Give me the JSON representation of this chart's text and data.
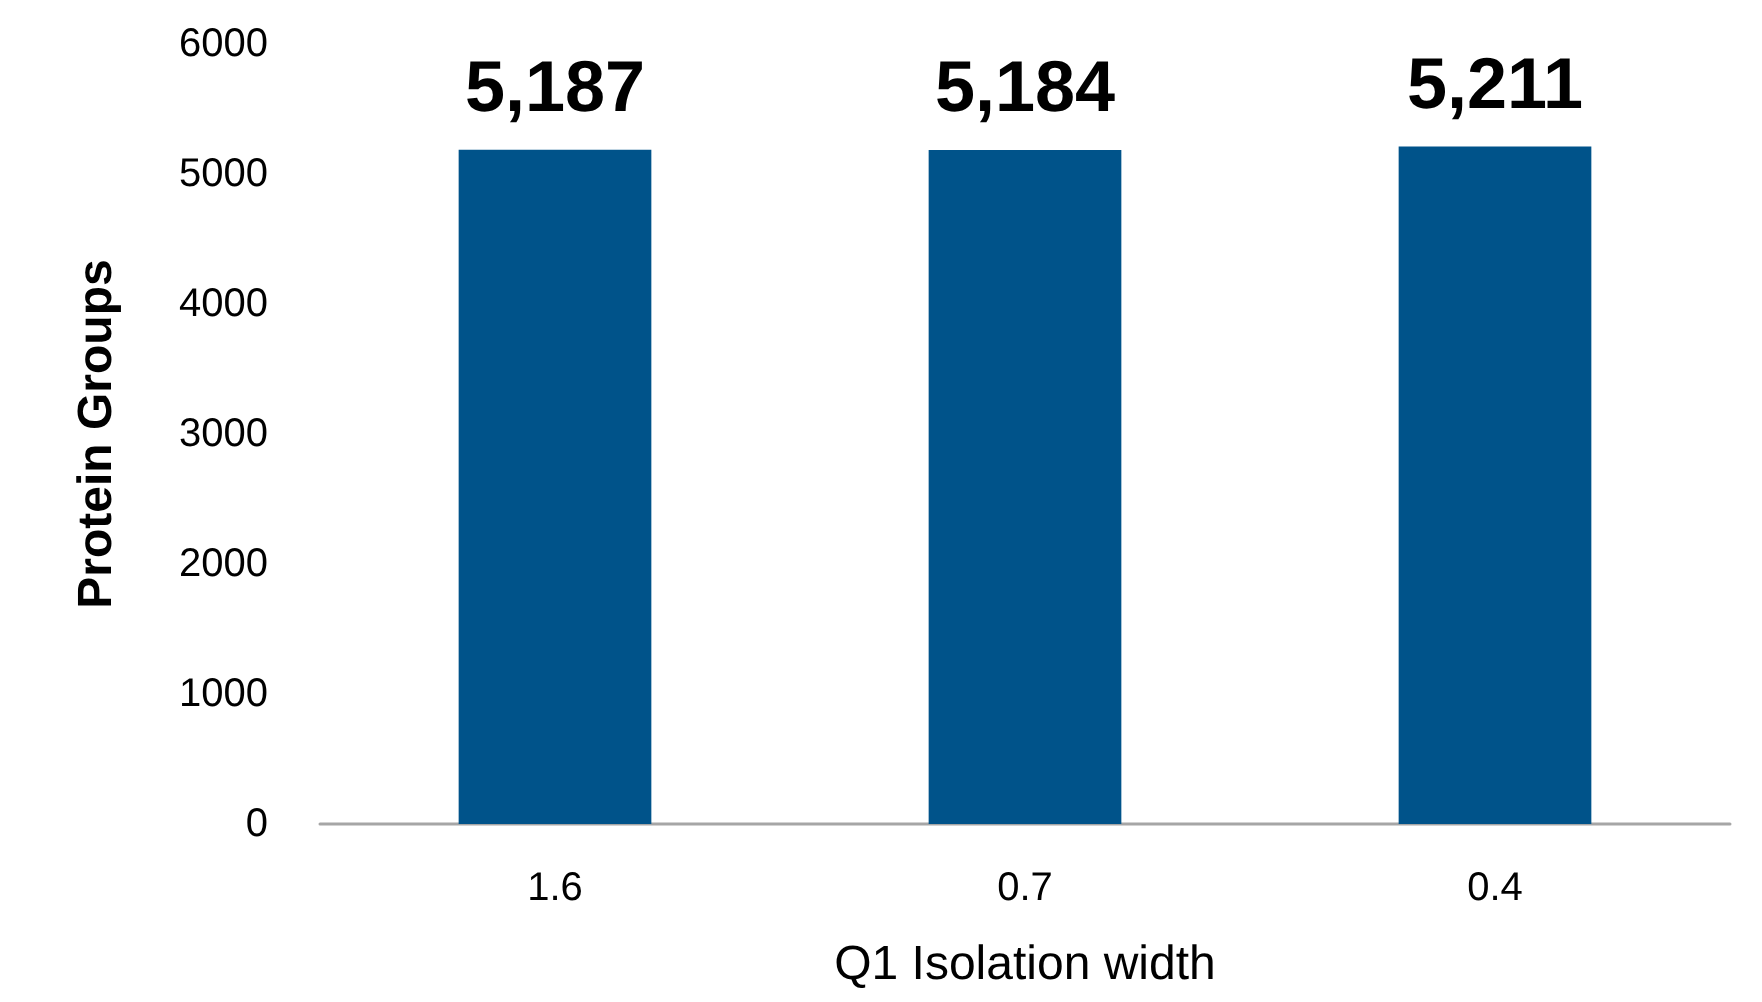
{
  "chart_data": {
    "type": "bar",
    "xlabel": "Q1 Isolation width",
    "ylabel": "Protein Groups",
    "categories": [
      "1.6",
      "0.7",
      "0.4"
    ],
    "values": [
      5187,
      5184,
      5211
    ],
    "value_labels": [
      "5,187",
      "5,184",
      "5,211"
    ],
    "color": "#00538a",
    "ylim": [
      0,
      6000
    ],
    "yticks": [
      0,
      1000,
      2000,
      3000,
      4000,
      5000,
      6000
    ],
    "grid": false
  }
}
